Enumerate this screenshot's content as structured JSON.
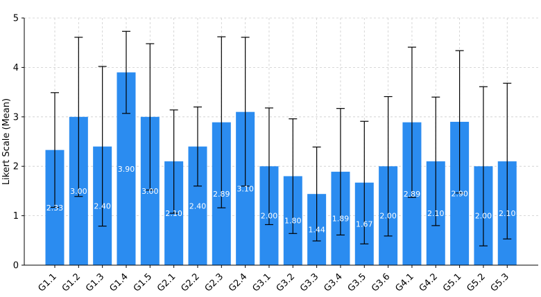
{
  "chart_data": {
    "type": "bar",
    "categories": [
      "G1.1",
      "G1.2",
      "G1.3",
      "G1.4",
      "G1.5",
      "G2.1",
      "G2.2",
      "G2.3",
      "G2.4",
      "G3.1",
      "G3.2",
      "G3.3",
      "G3.4",
      "G3.5",
      "G3.6",
      "G4.1",
      "G4.2",
      "G5.1",
      "G5.2",
      "G5.3"
    ],
    "values": [
      2.33,
      3.0,
      2.4,
      3.9,
      3.0,
      2.1,
      2.4,
      2.89,
      3.1,
      2.0,
      1.8,
      1.44,
      1.89,
      1.67,
      2.0,
      2.89,
      2.1,
      2.9,
      2.0,
      2.1
    ],
    "value_labels": [
      "2.33",
      "3.00",
      "2.40",
      "3.90",
      "3.00",
      "2.10",
      "2.40",
      "2.89",
      "3.10",
      "2.00",
      "1.80",
      "1.44",
      "1.89",
      "1.67",
      "2.00",
      "2.89",
      "2.10",
      "2.90",
      "2.00",
      "2.10"
    ],
    "error_low": [
      1.17,
      1.39,
      0.79,
      3.07,
      1.52,
      1.05,
      1.6,
      1.16,
      1.6,
      0.82,
      0.64,
      0.49,
      0.61,
      0.43,
      0.59,
      1.37,
      0.8,
      1.46,
      0.39,
      0.53
    ],
    "error_high": [
      3.49,
      4.61,
      4.02,
      4.73,
      4.48,
      3.14,
      3.2,
      4.62,
      4.61,
      3.18,
      2.96,
      2.39,
      3.17,
      2.91,
      3.41,
      4.41,
      3.4,
      4.34,
      3.61,
      3.68
    ],
    "ylabel": "Likert Scale (Mean)",
    "xlabel": "",
    "ylim": [
      0,
      5
    ],
    "yticks": [
      "0",
      "1",
      "2",
      "3",
      "4",
      "5"
    ],
    "grid": true,
    "bar_color": "#2b8cf0",
    "label_color": "#ffffff"
  }
}
